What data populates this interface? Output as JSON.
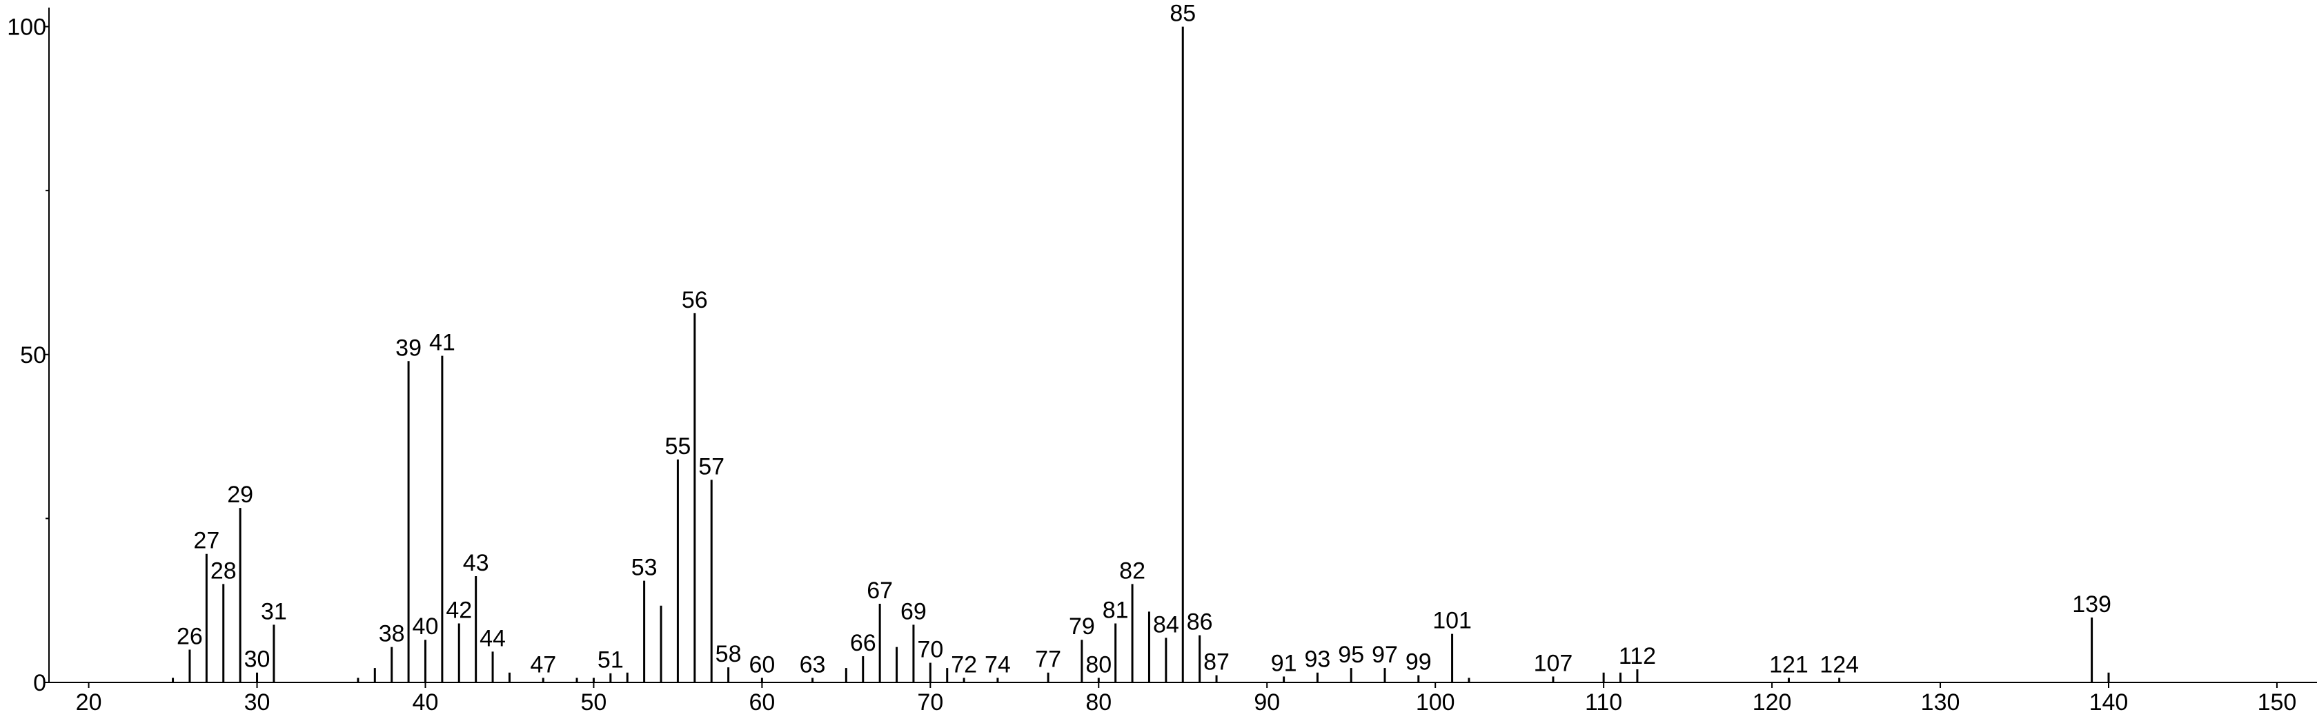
{
  "chart_data": {
    "type": "stem",
    "x": [
      25,
      26,
      27,
      28,
      29,
      30,
      31,
      36,
      37,
      38,
      39,
      40,
      41,
      42,
      43,
      44,
      45,
      47,
      49,
      50,
      51,
      52,
      53,
      54,
      55,
      56,
      57,
      58,
      60,
      63,
      65,
      66,
      67,
      68,
      69,
      70,
      71,
      72,
      74,
      77,
      79,
      80,
      81,
      82,
      83,
      84,
      85,
      86,
      87,
      91,
      93,
      95,
      97,
      99,
      101,
      102,
      107,
      110,
      111,
      112,
      121,
      124,
      139,
      140
    ],
    "values": [
      0.7,
      5,
      19.6,
      15,
      26.6,
      1.5,
      8.8,
      0.7,
      2.2,
      5.4,
      49,
      6.5,
      49.8,
      9,
      16.2,
      4.7,
      1.5,
      0.7,
      0.7,
      0.7,
      1.4,
      1.5,
      15.5,
      11.7,
      34,
      56.3,
      30.9,
      2.3,
      0.7,
      0.7,
      2.2,
      4,
      12,
      5.4,
      8.8,
      3,
      2.2,
      0.7,
      0.7,
      1.5,
      6.5,
      0.7,
      9,
      15,
      10.8,
      6.8,
      100,
      7.2,
      1.1,
      0.9,
      1.5,
      2.2,
      2.2,
      1.1,
      7.4,
      0.7,
      0.9,
      1.5,
      1.5,
      2,
      0.7,
      0.7,
      9.9,
      1.5
    ],
    "peak_labels": [
      null,
      26,
      27,
      28,
      29,
      30,
      31,
      null,
      null,
      38,
      39,
      40,
      41,
      42,
      43,
      44,
      null,
      47,
      null,
      null,
      51,
      null,
      53,
      null,
      55,
      56,
      57,
      58,
      60,
      63,
      null,
      66,
      67,
      null,
      69,
      70,
      null,
      72,
      74,
      77,
      79,
      80,
      81,
      82,
      null,
      84,
      85,
      86,
      87,
      91,
      93,
      95,
      97,
      99,
      101,
      null,
      107,
      null,
      null,
      112,
      121,
      124,
      139,
      null
    ],
    "color": "#000000",
    "xlim": [
      17.64,
      152.38
    ],
    "xticks": [
      20,
      30,
      40,
      50,
      60,
      70,
      80,
      90,
      100,
      110,
      120,
      130,
      140,
      150
    ],
    "ylim": [
      0,
      102.9
    ],
    "yticks": [
      0,
      50,
      100
    ],
    "yminor_ticks": [
      25,
      75
    ]
  }
}
